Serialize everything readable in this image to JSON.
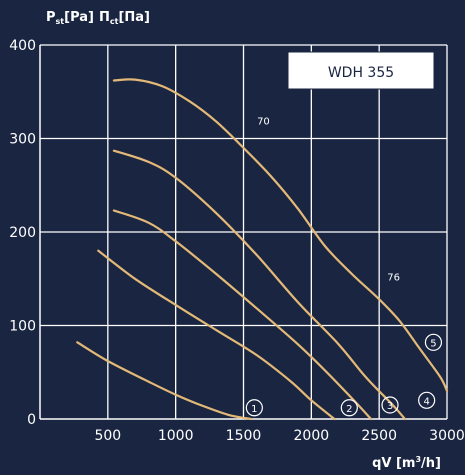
{
  "chart_data": {
    "type": "line",
    "title": "WDH 355",
    "ylabel": "P",
    "ylabel_sub": "st",
    "ylabel_unit": "[Pa]",
    "ylabel2": "П",
    "ylabel2_sub": "ct",
    "ylabel2_unit": "[Па]",
    "xlabel": "qV [m",
    "xlabel_sup": "3",
    "xlabel_end": "/h]",
    "xlim": [
      0,
      3000
    ],
    "ylim": [
      0,
      400
    ],
    "x_ticks": [
      500,
      1000,
      1500,
      2000,
      2500,
      3000
    ],
    "y_ticks": [
      0,
      100,
      200,
      300,
      400
    ],
    "grid": true,
    "series": [
      {
        "label": "1",
        "points": [
          [
            275,
            82
          ],
          [
            500,
            62
          ],
          [
            800,
            40
          ],
          [
            1000,
            26
          ],
          [
            1200,
            14
          ],
          [
            1400,
            4
          ],
          [
            1560,
            0
          ]
        ]
      },
      {
        "label": "2",
        "points": [
          [
            430,
            180
          ],
          [
            700,
            150
          ],
          [
            1000,
            122
          ],
          [
            1300,
            95
          ],
          [
            1600,
            68
          ],
          [
            1850,
            40
          ],
          [
            2000,
            20
          ],
          [
            2170,
            0
          ]
        ]
      },
      {
        "label": "3",
        "points": [
          [
            545,
            223
          ],
          [
            800,
            210
          ],
          [
            1000,
            190
          ],
          [
            1300,
            155
          ],
          [
            1600,
            118
          ],
          [
            1900,
            80
          ],
          [
            2100,
            52
          ],
          [
            2300,
            22
          ],
          [
            2440,
            0
          ]
        ]
      },
      {
        "label": "4",
        "points": [
          [
            545,
            287
          ],
          [
            800,
            275
          ],
          [
            1000,
            258
          ],
          [
            1300,
            220
          ],
          [
            1600,
            175
          ],
          [
            1900,
            125
          ],
          [
            2200,
            80
          ],
          [
            2400,
            45
          ],
          [
            2600,
            15
          ],
          [
            2690,
            0
          ]
        ]
      },
      {
        "label": "5",
        "points": [
          [
            545,
            362
          ],
          [
            700,
            363
          ],
          [
            900,
            356
          ],
          [
            1100,
            340
          ],
          [
            1300,
            318
          ],
          [
            1500,
            290
          ],
          [
            1700,
            260
          ],
          [
            1900,
            225
          ],
          [
            2100,
            185
          ],
          [
            2300,
            155
          ],
          [
            2500,
            128
          ],
          [
            2650,
            105
          ],
          [
            2800,
            75
          ],
          [
            2950,
            45
          ],
          [
            3000,
            30
          ]
        ]
      }
    ],
    "annotations": [
      {
        "text": "70",
        "x": 1600,
        "y": 315
      },
      {
        "text": "76",
        "x": 2560,
        "y": 148
      }
    ]
  }
}
